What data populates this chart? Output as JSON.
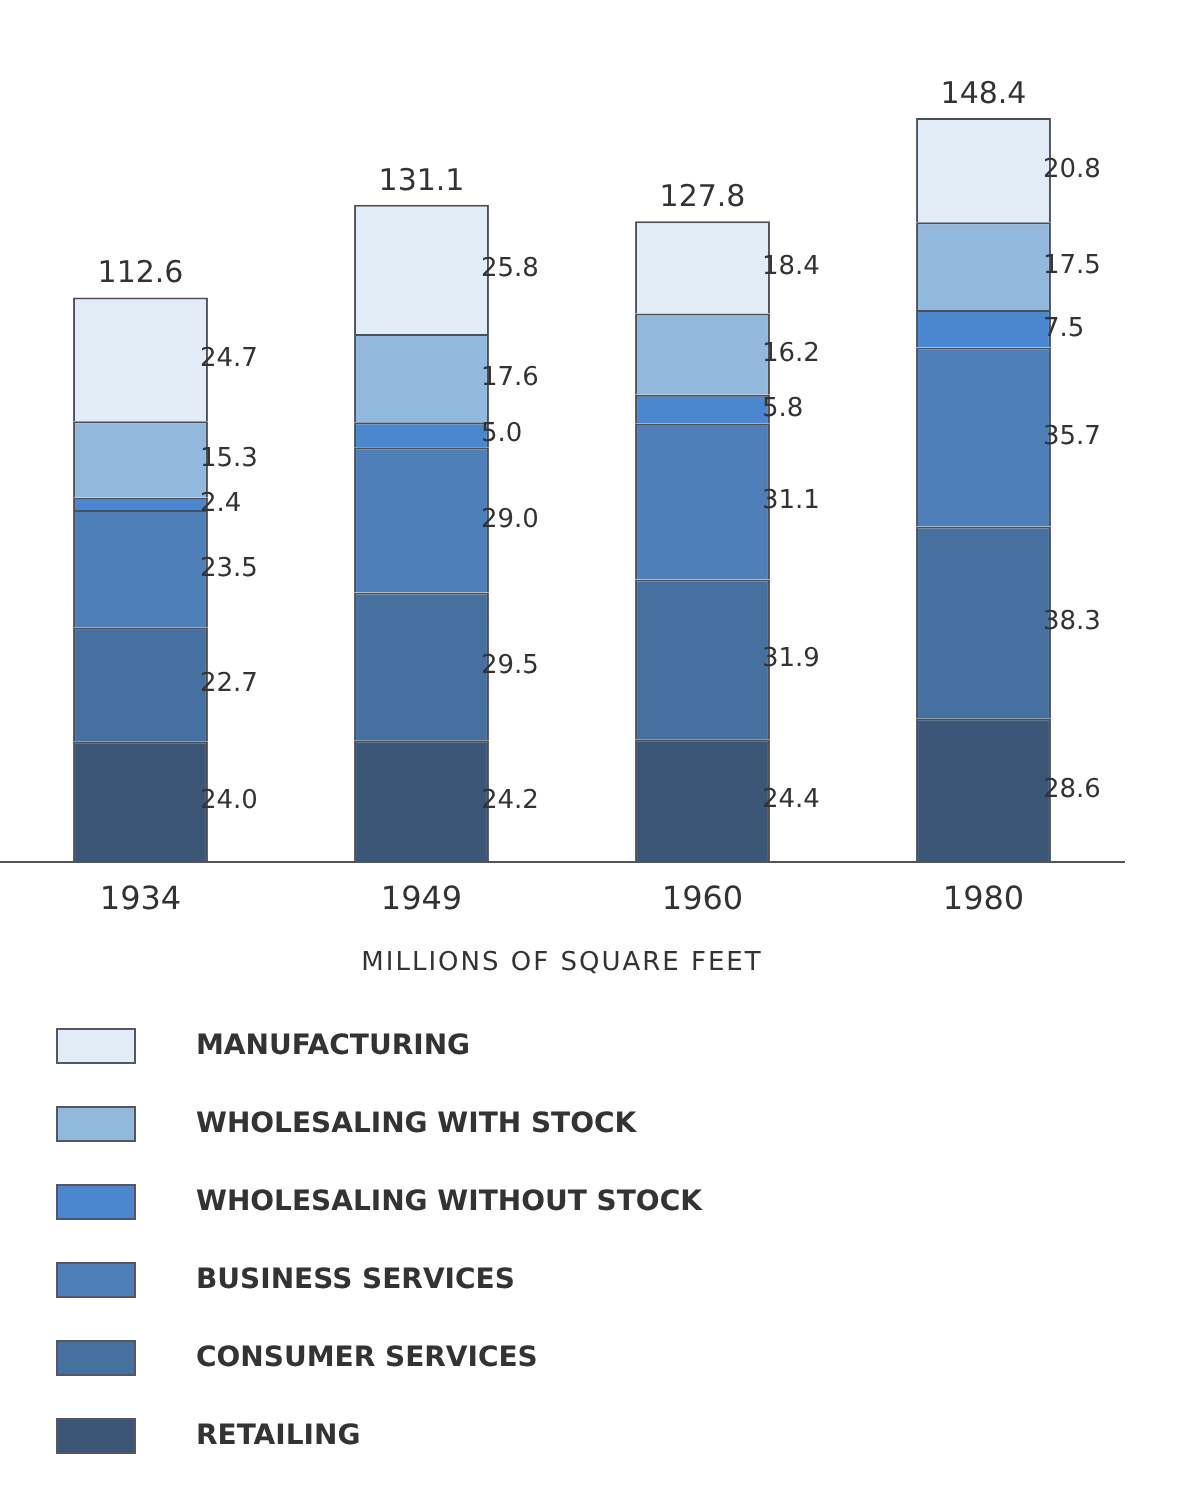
{
  "chart_data": {
    "type": "bar",
    "stacked": true,
    "legend": "bottom",
    "xlabel": "MILLIONS OF SQUARE FEET",
    "categories": [
      "1934",
      "1949",
      "1960",
      "1980"
    ],
    "totals": [
      "112.6",
      "131.1",
      "127.8",
      "148.4"
    ],
    "series": [
      {
        "name": "RETAILING",
        "color": "#3b5677",
        "values": [
          24.0,
          24.2,
          24.4,
          28.6
        ],
        "value_labels": [
          "24.0",
          "24.2",
          "24.4",
          "28.6"
        ]
      },
      {
        "name": "CONSUMER SERVICES",
        "color": "#46709f",
        "values": [
          22.7,
          29.5,
          31.9,
          38.3
        ],
        "value_labels": [
          "22.7",
          "29.5",
          "31.9",
          "38.3"
        ]
      },
      {
        "name": "BUSINESS SERVICES",
        "color": "#4e7fb9",
        "values": [
          23.5,
          29.0,
          31.1,
          35.7
        ],
        "value_labels": [
          "23.5",
          "29.0",
          "31.1",
          "35.7"
        ]
      },
      {
        "name": "WHOLESALING WITHOUT STOCK",
        "color": "#4a87cf",
        "values": [
          2.4,
          5.0,
          5.8,
          7.5
        ],
        "value_labels": [
          "2.4",
          "5.0",
          "5.8",
          "7.5"
        ]
      },
      {
        "name": "WHOLESALING WITH STOCK",
        "color": "#92b8de",
        "values": [
          15.3,
          17.6,
          16.2,
          17.5
        ],
        "value_labels": [
          "15.3",
          "17.6",
          "16.2",
          "17.5"
        ]
      },
      {
        "name": "MANUFACTURING",
        "color": "#e1ecf6",
        "values": [
          24.7,
          25.8,
          18.4,
          20.8
        ],
        "value_labels": [
          "24.7",
          "25.8",
          "18.4",
          "20.8"
        ]
      }
    ]
  }
}
